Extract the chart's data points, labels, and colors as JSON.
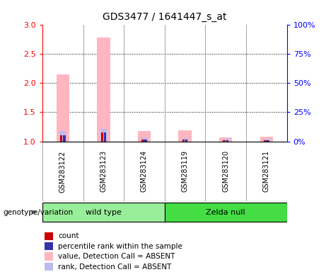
{
  "title": "GDS3477 / 1641447_s_at",
  "samples": [
    "GSM283122",
    "GSM283123",
    "GSM283124",
    "GSM283119",
    "GSM283120",
    "GSM283121"
  ],
  "pink_values": [
    2.15,
    2.78,
    1.18,
    1.19,
    1.07,
    1.08
  ],
  "blue_values": [
    1.18,
    1.21,
    1.07,
    1.06,
    1.04,
    1.05
  ],
  "red_values": [
    1.1,
    1.15,
    1.03,
    1.03,
    1.02,
    1.02
  ],
  "darkblue_values": [
    1.1,
    1.15,
    1.03,
    1.03,
    1.02,
    1.02
  ],
  "ylim_left": [
    1.0,
    3.0
  ],
  "ylim_right": [
    0,
    100
  ],
  "yticks_left": [
    1.0,
    1.5,
    2.0,
    2.5,
    3.0
  ],
  "yticks_right": [
    0,
    25,
    50,
    75,
    100
  ],
  "ytick_labels_right": [
    "0%",
    "25%",
    "50%",
    "75%",
    "100%"
  ],
  "bar_color_pink": "#FFB6C1",
  "bar_color_blue": "#BBBBEE",
  "bar_color_red": "#CC0000",
  "bar_color_darkblue": "#3333AA",
  "background_color": "#FFFFFF",
  "sample_box_color": "#D3D3D3",
  "group_info": [
    {
      "label": "wild type",
      "start": 0,
      "end": 2,
      "color": "#99EE99"
    },
    {
      "label": "Zelda null",
      "start": 3,
      "end": 5,
      "color": "#44DD44"
    }
  ],
  "genotype_label": "genotype/variation",
  "legend_items": [
    "count",
    "percentile rank within the sample",
    "value, Detection Call = ABSENT",
    "rank, Detection Call = ABSENT"
  ],
  "legend_colors": [
    "#CC0000",
    "#3333AA",
    "#FFB6C1",
    "#BBBBEE"
  ]
}
